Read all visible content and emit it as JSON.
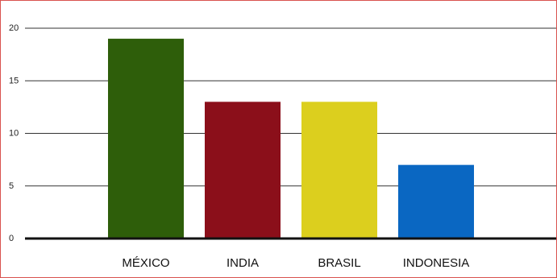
{
  "chart_data": {
    "type": "bar",
    "categories": [
      "MÉXICO",
      "INDIA",
      "BRASIL",
      "INDONESIA"
    ],
    "values": [
      19,
      13,
      13,
      7
    ],
    "colors": [
      "#2e5e0a",
      "#8b0f1a",
      "#dccf1e",
      "#0a67c2"
    ],
    "ylim": [
      0,
      20
    ],
    "yticks": [
      0,
      5,
      10,
      15,
      20
    ],
    "grid": true,
    "title": "",
    "xlabel": "",
    "ylabel": ""
  }
}
